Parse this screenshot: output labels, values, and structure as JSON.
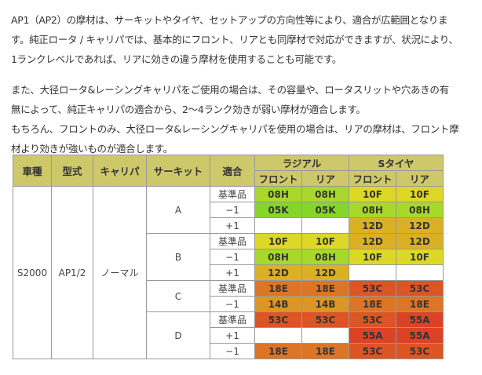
{
  "paragraphs": [
    {
      "lines": [
        "AP1（AP2）の摩材は、サーキットやタイヤ、セットアップの方向性等により、適合が広範囲となりま",
        "す。純正ロータ / キャリパでは、基本的にフロント、リアとも同摩材で対応ができますが、状況により、",
        "1ランクレベルであれば、リアに効きの違う摩材を使用することも可能です。"
      ]
    },
    {
      "lines": [
        "また、大径ロータ&レーシングキャリパをご使用の場合は、その容量や、ロータスリットや穴あきの有",
        "無によって、純正キャリパの適合から、2〜4ランク効きが弱い摩材が適合します。",
        "もちろん、フロントのみ、大径ロータ&レーシングキャリパを使用の場合は、リアの摩材は、フロント摩",
        "材より効きが強いものが適合します。"
      ]
    }
  ],
  "table": {
    "headers": {
      "car": "車種",
      "model": "型式",
      "caliper": "キャリパ",
      "circuit": "サーキット",
      "fit": "適合",
      "radial": "ラジアル",
      "stire": "Sタイヤ",
      "front": "フロント",
      "rear": "リア"
    },
    "car": "S2000",
    "model": "AP1/2",
    "caliper": "ノーマル",
    "circuits": [
      {
        "name": "A",
        "rows": [
          {
            "fit": "基準品",
            "cells": [
              {
                "v": "08H",
                "c": "#a8d82a"
              },
              {
                "v": "08H",
                "c": "#a8d82a"
              },
              {
                "v": "10F",
                "c": "#dcd825"
              },
              {
                "v": "10F",
                "c": "#dcd825"
              }
            ]
          },
          {
            "fit": "−1",
            "cells": [
              {
                "v": "05K",
                "c": "#86d62a"
              },
              {
                "v": "05K",
                "c": "#86d62a"
              },
              {
                "v": "08H",
                "c": "#a8d82a"
              },
              {
                "v": "08H",
                "c": "#a8d82a"
              }
            ]
          },
          {
            "fit": "+1",
            "cells": [
              {
                "v": "",
                "c": "#ffffff"
              },
              {
                "v": "",
                "c": "#ffffff"
              },
              {
                "v": "12D",
                "c": "#dab125"
              },
              {
                "v": "12D",
                "c": "#dab125"
              }
            ]
          }
        ]
      },
      {
        "name": "B",
        "rows": [
          {
            "fit": "基準品",
            "cells": [
              {
                "v": "10F",
                "c": "#dcd825"
              },
              {
                "v": "10F",
                "c": "#dcd825"
              },
              {
                "v": "12D",
                "c": "#dab125"
              },
              {
                "v": "12D",
                "c": "#dab125"
              }
            ]
          },
          {
            "fit": "−1",
            "cells": [
              {
                "v": "08H",
                "c": "#a8d82a"
              },
              {
                "v": "08H",
                "c": "#a8d82a"
              },
              {
                "v": "10F",
                "c": "#dcd825"
              },
              {
                "v": "10F",
                "c": "#dcd825"
              }
            ]
          },
          {
            "fit": "+1",
            "cells": [
              {
                "v": "12D",
                "c": "#dab125"
              },
              {
                "v": "12D",
                "c": "#dab125"
              },
              {
                "v": "",
                "c": "#ffffff"
              },
              {
                "v": "",
                "c": "#ffffff"
              }
            ]
          }
        ]
      },
      {
        "name": "C",
        "rows": [
          {
            "fit": "基準品",
            "cells": [
              {
                "v": "18E",
                "c": "#dc7525"
              },
              {
                "v": "18E",
                "c": "#dc7525"
              },
              {
                "v": "53C",
                "c": "#dc5525"
              },
              {
                "v": "53C",
                "c": "#dc5525"
              }
            ]
          },
          {
            "fit": "−1",
            "cells": [
              {
                "v": "14B",
                "c": "#dc9625"
              },
              {
                "v": "14B",
                "c": "#dc9625"
              },
              {
                "v": "18E",
                "c": "#dc7525"
              },
              {
                "v": "18E",
                "c": "#dc7525"
              }
            ]
          }
        ]
      },
      {
        "name": "D",
        "rows": [
          {
            "fit": "基準品",
            "cells": [
              {
                "v": "53C",
                "c": "#dc5525"
              },
              {
                "v": "53C",
                "c": "#dc5525"
              },
              {
                "v": "53C",
                "c": "#dc5525"
              },
              {
                "v": "55A",
                "c": "#dc4225"
              }
            ]
          },
          {
            "fit": "+1",
            "cells": [
              {
                "v": "",
                "c": "#ffffff"
              },
              {
                "v": "",
                "c": "#ffffff"
              },
              {
                "v": "55A",
                "c": "#dc4225"
              },
              {
                "v": "55A",
                "c": "#dc4225"
              }
            ]
          },
          {
            "fit": "−1",
            "cells": [
              {
                "v": "18E",
                "c": "#dc7525"
              },
              {
                "v": "18E",
                "c": "#dc7525"
              },
              {
                "v": "53C",
                "c": "#dc5525"
              },
              {
                "v": "53C",
                "c": "#dc5525"
              }
            ]
          }
        ]
      }
    ]
  }
}
